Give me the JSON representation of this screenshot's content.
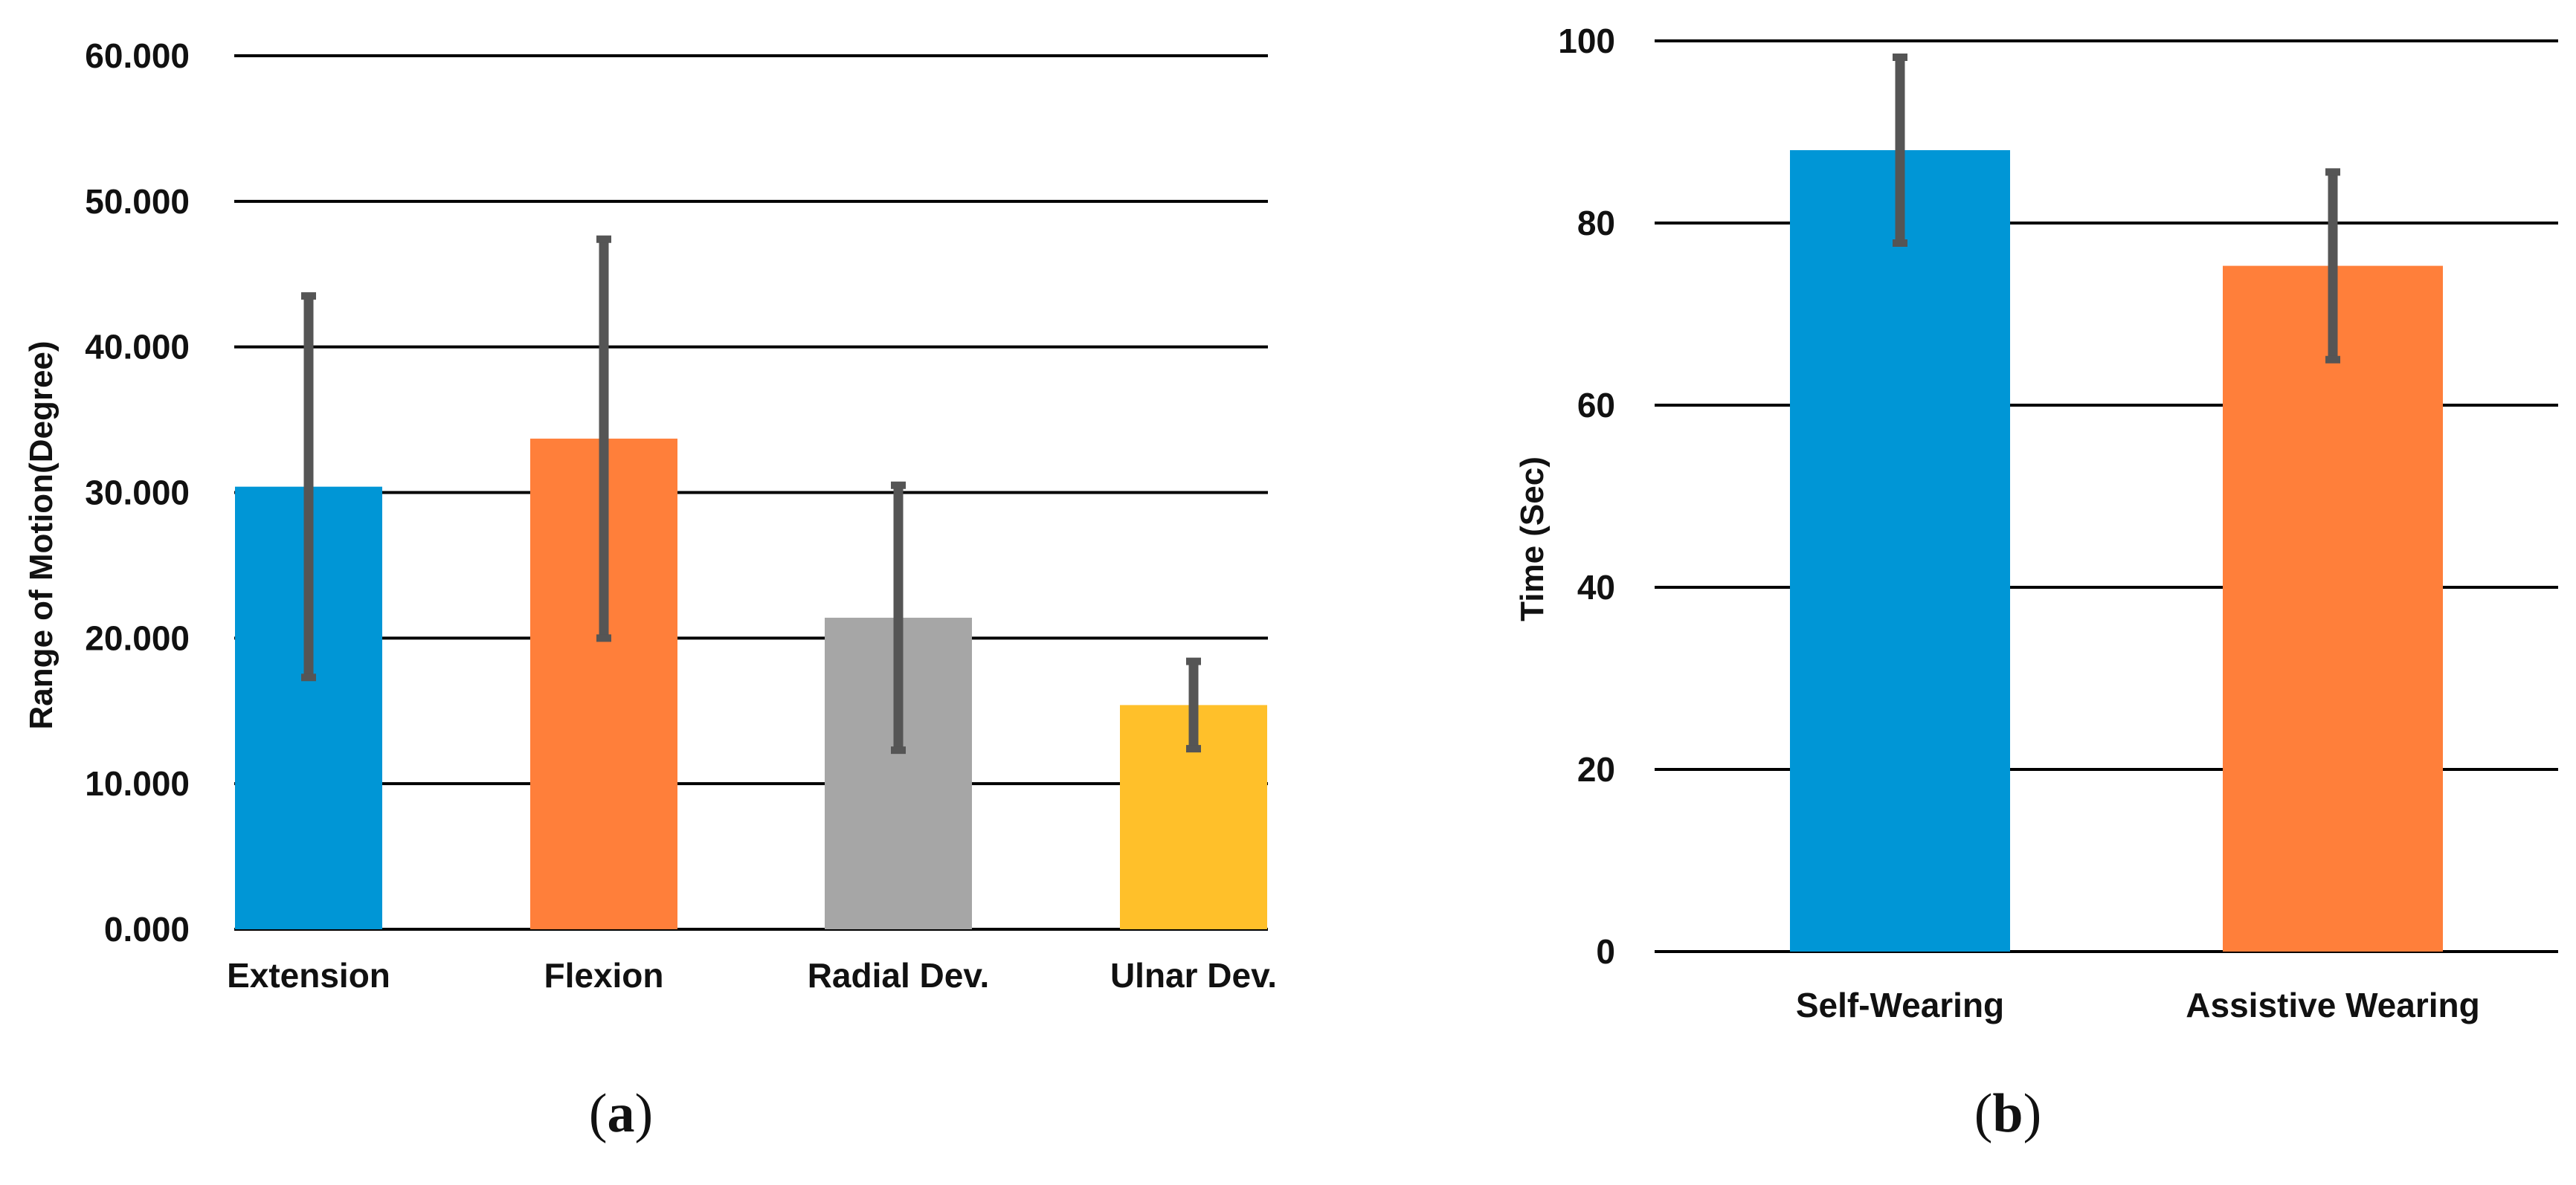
{
  "chart_data": [
    {
      "id": "a",
      "type": "bar",
      "caption": "(a)",
      "caption_letter": "a",
      "title": "",
      "xlabel": "",
      "ylabel": "Range of Motion(Degree)",
      "ylim": [
        0,
        60
      ],
      "yticks": [
        0,
        10,
        20,
        30,
        40,
        50,
        60
      ],
      "ytick_labels": [
        "0.000",
        "10.000",
        "20.000",
        "30.000",
        "40.000",
        "50.000",
        "60.000"
      ],
      "grid": true,
      "categories": [
        "Extension",
        "Flexion",
        "Radial Dev.",
        "Ulnar Dev."
      ],
      "values": [
        30.4,
        33.7,
        21.4,
        15.4
      ],
      "errors": [
        13.1,
        13.7,
        9.1,
        3.0
      ],
      "colors": [
        "#0096D6",
        "#FF7F3A",
        "#A6A6A6",
        "#FFC02A"
      ]
    },
    {
      "id": "b",
      "type": "bar",
      "caption": "(b)",
      "caption_letter": "b",
      "title": "",
      "xlabel": "",
      "ylabel": "Time (Sec)",
      "ylim": [
        0,
        100
      ],
      "yticks": [
        0,
        20,
        40,
        60,
        80,
        100
      ],
      "ytick_labels": [
        "0",
        "20",
        "40",
        "60",
        "80",
        "100"
      ],
      "grid": true,
      "categories": [
        "Self-Wearing",
        "Assistive Wearing"
      ],
      "values": [
        88,
        75.3
      ],
      "errors": [
        10.2,
        10.3
      ],
      "colors": [
        "#0096D6",
        "#FF7F3A"
      ]
    }
  ],
  "style": {
    "error_bar_color": "#555555",
    "grid_color": "#000000"
  }
}
